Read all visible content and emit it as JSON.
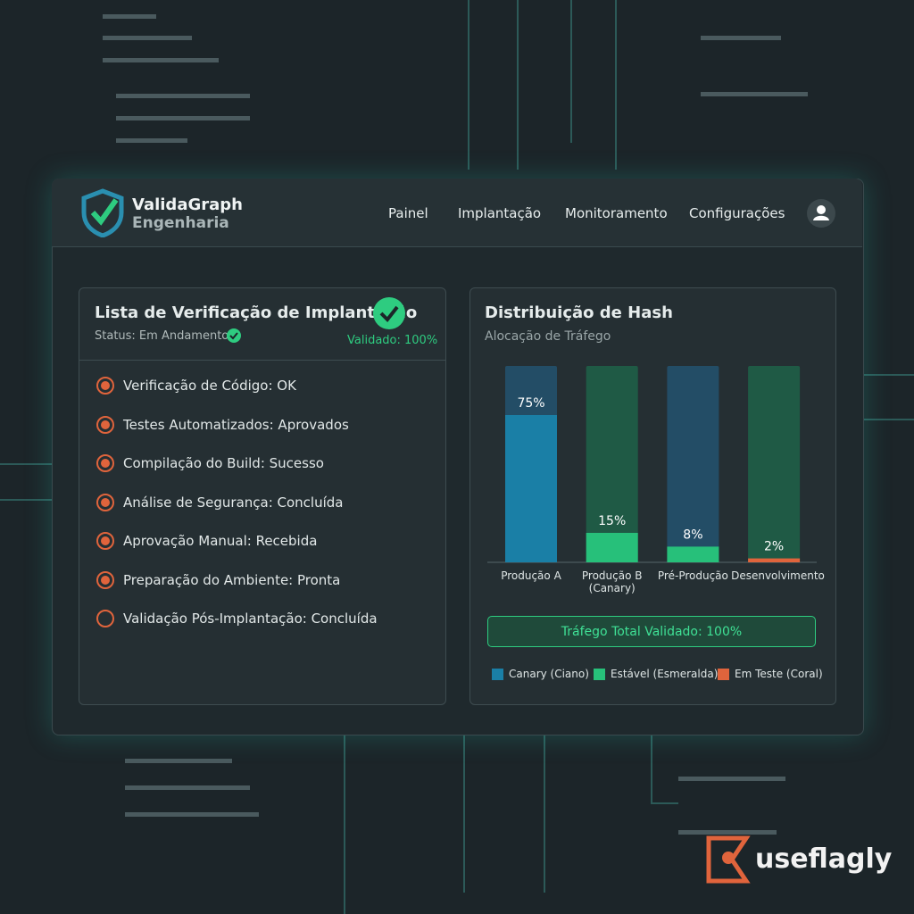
{
  "header": {
    "brand": "ValidaGraph",
    "subbrand": "Engenharia",
    "nav": [
      "Painel",
      "Implantação",
      "Monitoramento",
      "Configurações"
    ]
  },
  "checklist": {
    "title": "Lista de Verificação de Implantação",
    "status": "Status: Em Andamento",
    "validated": "Validado: 100%",
    "items": [
      {
        "label": "Verificação de Código: OK",
        "checked": true
      },
      {
        "label": "Testes Automatizados: Aprovados",
        "checked": true
      },
      {
        "label": "Compilação do Build: Sucesso",
        "checked": true
      },
      {
        "label": "Análise de Segurança: Concluída",
        "checked": true
      },
      {
        "label": "Aprovação Manual: Recebida",
        "checked": true
      },
      {
        "label": "Preparação do Ambiente: Pronta",
        "checked": true
      },
      {
        "label": "Validação Pós-Implantação: Concluída",
        "checked": false
      }
    ]
  },
  "chart_data": {
    "type": "bar",
    "title": "Distribuição de Hash",
    "subtitle": "Alocação de Tráfego",
    "categories": [
      "Produção A",
      "Produção B (Canary)",
      "Pré-Produção",
      "Desenvolvimento"
    ],
    "values": [
      75,
      15,
      8,
      2
    ],
    "value_labels": [
      "75%",
      "15%",
      "8%",
      "2%"
    ],
    "colors": [
      "#1a7fa6",
      "#27c07a",
      "#27c07a",
      "#e0643c"
    ],
    "track_colors": [
      "#234d66",
      "#1f5a45",
      "#234d66",
      "#1f5a45"
    ],
    "ylim": [
      0,
      100
    ],
    "total": "Tráfego Total Validado: 100%",
    "legend": [
      {
        "label": "Canary (Ciano)",
        "color": "#1a7fa6"
      },
      {
        "label": "Estável (Esmeralda)",
        "color": "#27c07a"
      },
      {
        "label": "Em Teste (Coral)",
        "color": "#e0643c"
      }
    ]
  },
  "watermark": "useflagly"
}
